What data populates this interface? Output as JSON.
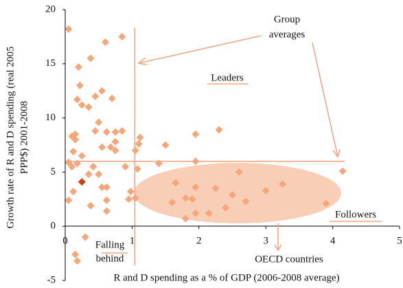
{
  "chart_data": {
    "type": "scatter",
    "xlabel": "R and D spending as a % of GDP (2006-2008 average)",
    "ylabel": [
      "Growth rate of R and D spending (real 2005",
      "PPP$) 2001-2008"
    ],
    "xlim": [
      0,
      5
    ],
    "ylim": [
      -5,
      20
    ],
    "xticks": [
      0,
      1,
      2,
      3,
      4,
      5
    ],
    "yticks": [
      -5,
      0,
      5,
      10,
      15,
      20
    ],
    "reference_lines": {
      "x": 1.04,
      "y": 6
    },
    "annotations": {
      "group": [
        "Group",
        "averages"
      ],
      "leaders": "Leaders",
      "followers": "Followers",
      "falling": [
        "Falling",
        "behind"
      ],
      "oecd": "OECD countries"
    },
    "series": [
      {
        "color": "#f5a77a",
        "x": [
          0.05,
          0.6,
          0.85,
          0.38,
          0.2,
          0.55,
          0.22,
          0.45,
          0.18,
          0.25,
          0.35,
          0.7,
          0.5,
          0.15,
          0.1,
          0.45,
          0.62,
          0.75,
          0.85,
          0.15,
          0.75,
          1.12,
          0.55,
          0.68,
          0.75,
          1.1,
          1.05,
          0.12,
          0.25,
          0.05,
          0.1,
          0.18,
          0.42,
          0.35,
          0.9,
          1.08,
          0.5,
          0.55,
          0.62,
          0.12,
          0.98,
          0.05,
          0.62,
          0.95,
          1.05,
          0.38,
          0.62,
          0.3,
          0.15,
          0.18,
          1.5,
          1.95,
          2.3,
          1.4,
          1.95,
          2.6,
          1.65,
          1.95,
          2.25,
          2.5,
          3.25,
          3.0,
          2.7,
          2.4,
          1.6,
          1.8,
          1.9,
          1.95,
          1.8,
          2.15,
          3.9,
          4.15
        ],
        "values": [
          18.2,
          17.0,
          17.5,
          15.5,
          14.7,
          12.5,
          13.0,
          12.0,
          11.7,
          11.2,
          11.0,
          11.8,
          9.6,
          8.5,
          8.3,
          8.8,
          8.7,
          8.7,
          8.8,
          8.0,
          7.8,
          8.2,
          7.3,
          7.3,
          7.0,
          7.6,
          7.0,
          6.9,
          6.5,
          5.9,
          5.5,
          5.8,
          5.5,
          4.8,
          5.5,
          5.3,
          4.8,
          3.6,
          3.6,
          3.2,
          3.2,
          2.4,
          2.4,
          2.5,
          2.6,
          1.9,
          1.4,
          -1.0,
          -2.6,
          -3.2,
          7.5,
          8.5,
          8.9,
          5.8,
          6.0,
          5.0,
          4.0,
          3.6,
          3.5,
          2.9,
          3.9,
          3.3,
          2.3,
          1.7,
          2.2,
          2.6,
          2.5,
          1.2,
          0.7,
          1.2,
          2.1,
          5.1
        ]
      },
      {
        "color": "#c8401a",
        "x": [
          0.25
        ],
        "values": [
          4.1
        ]
      }
    ]
  }
}
